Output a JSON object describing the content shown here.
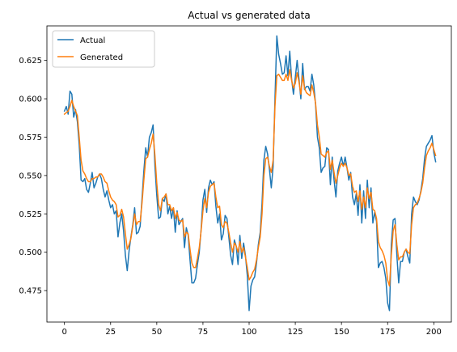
{
  "chart_data": {
    "type": "line",
    "title": "Actual vs generated data",
    "xlabel": "",
    "ylabel": "",
    "xlim": [
      -9.5,
      209.5
    ],
    "ylim": [
      0.4545,
      0.6475
    ],
    "x_ticks": [
      0,
      25,
      50,
      75,
      100,
      125,
      150,
      175,
      200
    ],
    "y_ticks": [
      0.475,
      0.5,
      0.525,
      0.55,
      0.575,
      0.6,
      0.625
    ],
    "grid": false,
    "legend": "upper-left",
    "series": [
      {
        "name": "Actual",
        "color": "#1f77b4",
        "values": [
          0.592,
          0.595,
          0.59,
          0.605,
          0.603,
          0.588,
          0.593,
          0.585,
          0.57,
          0.547,
          0.546,
          0.548,
          0.541,
          0.539,
          0.545,
          0.552,
          0.542,
          0.545,
          0.549,
          0.551,
          0.548,
          0.541,
          0.536,
          0.54,
          0.534,
          0.529,
          0.531,
          0.525,
          0.527,
          0.51,
          0.519,
          0.525,
          0.514,
          0.498,
          0.488,
          0.501,
          0.51,
          0.518,
          0.529,
          0.512,
          0.513,
          0.517,
          0.535,
          0.553,
          0.568,
          0.562,
          0.575,
          0.578,
          0.583,
          0.556,
          0.537,
          0.522,
          0.523,
          0.535,
          0.533,
          0.538,
          0.525,
          0.53,
          0.522,
          0.529,
          0.513,
          0.527,
          0.518,
          0.52,
          0.522,
          0.503,
          0.516,
          0.511,
          0.495,
          0.48,
          0.48,
          0.483,
          0.492,
          0.5,
          0.515,
          0.534,
          0.541,
          0.526,
          0.542,
          0.547,
          0.544,
          0.546,
          0.53,
          0.519,
          0.525,
          0.508,
          0.512,
          0.524,
          0.522,
          0.51,
          0.498,
          0.492,
          0.508,
          0.504,
          0.492,
          0.511,
          0.496,
          0.506,
          0.498,
          0.485,
          0.462,
          0.478,
          0.482,
          0.484,
          0.493,
          0.505,
          0.513,
          0.532,
          0.56,
          0.569,
          0.564,
          0.554,
          0.542,
          0.556,
          0.6,
          0.641,
          0.629,
          0.623,
          0.616,
          0.617,
          0.628,
          0.615,
          0.631,
          0.613,
          0.603,
          0.614,
          0.625,
          0.613,
          0.6,
          0.623,
          0.606,
          0.608,
          0.608,
          0.605,
          0.616,
          0.609,
          0.596,
          0.575,
          0.568,
          0.552,
          0.555,
          0.556,
          0.568,
          0.567,
          0.544,
          0.562,
          0.547,
          0.536,
          0.553,
          0.558,
          0.562,
          0.556,
          0.562,
          0.555,
          0.547,
          0.552,
          0.536,
          0.531,
          0.538,
          0.524,
          0.544,
          0.519,
          0.54,
          0.522,
          0.547,
          0.529,
          0.542,
          0.519,
          0.526,
          0.52,
          0.49,
          0.493,
          0.494,
          0.49,
          0.483,
          0.467,
          0.462,
          0.505,
          0.521,
          0.522,
          0.498,
          0.48,
          0.494,
          0.494,
          0.5,
          0.502,
          0.497,
          0.493,
          0.525,
          0.536,
          0.533,
          0.531,
          0.534,
          0.54,
          0.548,
          0.561,
          0.569,
          0.571,
          0.573,
          0.576,
          0.565,
          0.559
        ]
      },
      {
        "name": "Generated",
        "color": "#ff7f0e",
        "values": [
          0.59,
          0.591,
          0.592,
          0.595,
          0.599,
          0.595,
          0.592,
          0.589,
          0.575,
          0.56,
          0.553,
          0.551,
          0.548,
          0.546,
          0.546,
          0.548,
          0.548,
          0.549,
          0.549,
          0.551,
          0.551,
          0.549,
          0.546,
          0.545,
          0.54,
          0.536,
          0.534,
          0.533,
          0.531,
          0.523,
          0.524,
          0.528,
          0.523,
          0.512,
          0.502,
          0.505,
          0.509,
          0.517,
          0.525,
          0.518,
          0.52,
          0.52,
          0.532,
          0.547,
          0.561,
          0.562,
          0.567,
          0.571,
          0.577,
          0.563,
          0.545,
          0.531,
          0.527,
          0.535,
          0.536,
          0.538,
          0.531,
          0.531,
          0.527,
          0.529,
          0.522,
          0.526,
          0.521,
          0.52,
          0.521,
          0.51,
          0.513,
          0.512,
          0.502,
          0.493,
          0.49,
          0.49,
          0.496,
          0.503,
          0.514,
          0.527,
          0.535,
          0.529,
          0.539,
          0.543,
          0.544,
          0.545,
          0.536,
          0.529,
          0.53,
          0.518,
          0.516,
          0.52,
          0.519,
          0.513,
          0.506,
          0.5,
          0.506,
          0.504,
          0.5,
          0.507,
          0.5,
          0.503,
          0.497,
          0.49,
          0.482,
          0.484,
          0.487,
          0.489,
          0.495,
          0.503,
          0.51,
          0.525,
          0.55,
          0.561,
          0.562,
          0.556,
          0.552,
          0.56,
          0.595,
          0.615,
          0.616,
          0.614,
          0.612,
          0.612,
          0.616,
          0.612,
          0.619,
          0.612,
          0.607,
          0.61,
          0.617,
          0.611,
          0.603,
          0.615,
          0.607,
          0.604,
          0.603,
          0.602,
          0.609,
          0.604,
          0.597,
          0.583,
          0.575,
          0.564,
          0.563,
          0.562,
          0.565,
          0.566,
          0.554,
          0.56,
          0.552,
          0.545,
          0.55,
          0.555,
          0.558,
          0.556,
          0.558,
          0.555,
          0.55,
          0.551,
          0.543,
          0.539,
          0.54,
          0.533,
          0.54,
          0.528,
          0.536,
          0.529,
          0.542,
          0.535,
          0.539,
          0.528,
          0.527,
          0.522,
          0.507,
          0.503,
          0.501,
          0.498,
          0.493,
          0.482,
          0.478,
          0.498,
          0.514,
          0.518,
          0.505,
          0.495,
          0.497,
          0.497,
          0.5,
          0.502,
          0.5,
          0.499,
          0.518,
          0.529,
          0.531,
          0.532,
          0.535,
          0.539,
          0.545,
          0.555,
          0.563,
          0.566,
          0.568,
          0.571,
          0.567,
          0.563
        ]
      }
    ]
  }
}
